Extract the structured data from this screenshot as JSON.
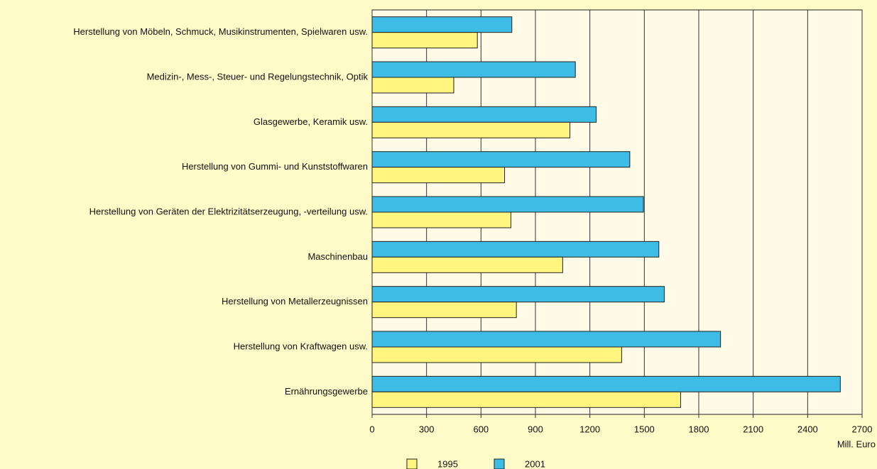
{
  "chart_data": {
    "type": "hbar",
    "x_label": "Mill. Euro",
    "categories": [
      "Herstellung von Möbeln, Schmuck, Musikinstrumenten, Spielwaren usw.",
      "Medizin-, Mess-, Steuer- und Regelungstechnik, Optik",
      "Glasgewerbe, Keramik usw.",
      "Herstellung von Gummi- und Kunststoffwaren",
      "Herstellung von Geräten der Elektrizitätserzeugung, -verteilung usw.",
      "Maschinenbau",
      "Herstellung von Metallerzeugnissen",
      "Herstellung von Kraftwagen usw.",
      "Ernährungsgewerbe"
    ],
    "series": [
      {
        "name": "1995",
        "color": "#fff57f",
        "values": [
          580,
          450,
          1090,
          730,
          765,
          1050,
          795,
          1375,
          1700
        ]
      },
      {
        "name": "2001",
        "color": "#3dbde6",
        "values": [
          770,
          1120,
          1235,
          1420,
          1495,
          1580,
          1610,
          1920,
          2580
        ]
      }
    ],
    "xlim": [
      0,
      2700
    ],
    "xticks": [
      0,
      300,
      600,
      900,
      1200,
      1500,
      1800,
      2100,
      2400,
      2700
    ],
    "grid": true
  }
}
